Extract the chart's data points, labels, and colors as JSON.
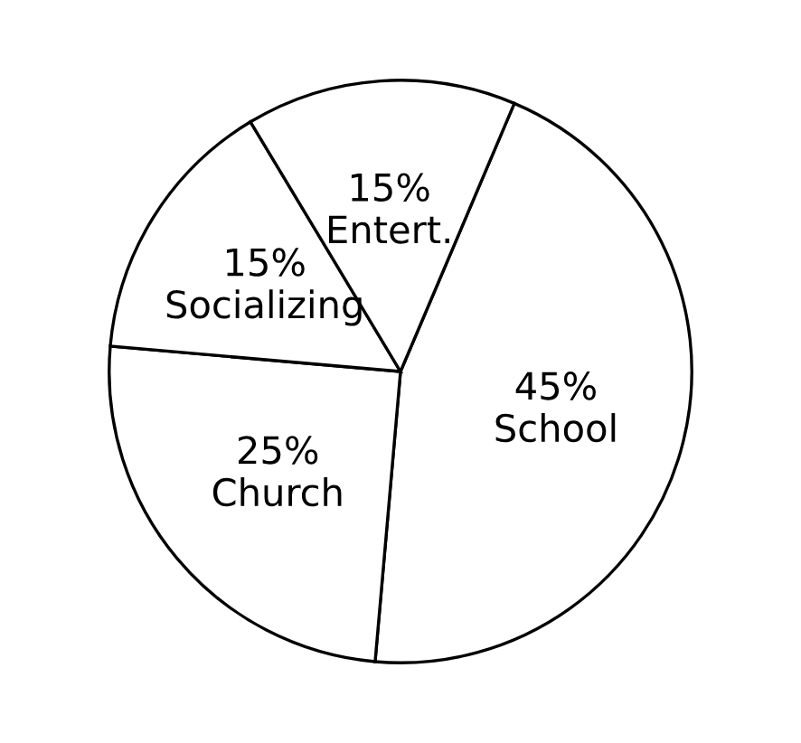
{
  "chart_data": {
    "type": "pie",
    "categories": [
      "School",
      "Church",
      "Socializing",
      "Entert."
    ],
    "values": [
      45,
      25,
      15,
      15
    ],
    "value_labels": [
      "45%",
      "25%",
      "15%",
      "15%"
    ],
    "colors": [
      "#ffffff",
      "#ffffff",
      "#ffffff",
      "#ffffff"
    ]
  }
}
